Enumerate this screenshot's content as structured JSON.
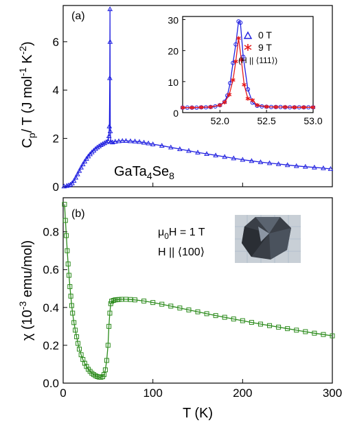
{
  "colors": {
    "cp": "#1f1fe0",
    "cp_inset_0T": "#1f1fe0",
    "cp_inset_9T": "#e41a1c",
    "chi": "#2a8a1a"
  },
  "chart_data": [
    {
      "panel": "(a)",
      "type": "scatter",
      "xlabel": "",
      "ylabel": "C_p / T (J mol^-1 K^-2)",
      "ylabel_parts": {
        "C": "C",
        "p": "p",
        "rest": "/ T (J mol",
        "e1": "-1",
        "K": " K",
        "e2": "-2",
        "close": ")"
      },
      "xlim": [
        0,
        300
      ],
      "ylim": [
        0,
        7.5
      ],
      "yticks": [
        "0",
        "2",
        "4",
        "6"
      ],
      "annotation": {
        "parts": [
          "GaTa",
          "4",
          "Se",
          "8"
        ]
      },
      "series": [
        {
          "marker": "triangle",
          "x": [
            1,
            4,
            6,
            8,
            10,
            12,
            14,
            16,
            18,
            20,
            22,
            24,
            26,
            28,
            30,
            32,
            34,
            36,
            38,
            40,
            42,
            44,
            46,
            48,
            50,
            51,
            51.5,
            52,
            52.2,
            52.3,
            52.5,
            53,
            55,
            58,
            62,
            66,
            70,
            75,
            80,
            85,
            90,
            95,
            100,
            110,
            120,
            130,
            140,
            150,
            160,
            170,
            180,
            190,
            200,
            210,
            220,
            230,
            240,
            250,
            260,
            270,
            280,
            290,
            298
          ],
          "y": [
            0.02,
            0.04,
            0.06,
            0.09,
            0.15,
            0.25,
            0.38,
            0.52,
            0.66,
            0.8,
            0.93,
            1.05,
            1.16,
            1.26,
            1.35,
            1.43,
            1.5,
            1.57,
            1.63,
            1.68,
            1.73,
            1.77,
            1.81,
            1.85,
            1.9,
            2.1,
            2.5,
            4.5,
            7.35,
            6.0,
            2.3,
            1.86,
            1.84,
            1.87,
            1.89,
            1.9,
            1.9,
            1.89,
            1.88,
            1.86,
            1.83,
            1.8,
            1.76,
            1.7,
            1.63,
            1.56,
            1.49,
            1.42,
            1.36,
            1.3,
            1.24,
            1.18,
            1.12,
            1.07,
            1.02,
            0.98,
            0.94,
            0.9,
            0.86,
            0.83,
            0.8,
            0.77,
            0.74
          ]
        }
      ],
      "inset": {
        "type": "line",
        "xlim": [
          51.6,
          53.0
        ],
        "ylim": [
          0,
          31
        ],
        "xticks": [
          "52.0",
          "52.5",
          "53.0"
        ],
        "yticks": [
          "0",
          "10",
          "20",
          "30"
        ],
        "legend": [
          "0 T",
          "9 T",
          "(H || ⟨111⟩)"
        ],
        "series": [
          {
            "name": "0 T",
            "marker": "triangle",
            "x": [
              51.6,
              51.65,
              51.7,
              51.75,
              51.8,
              51.85,
              51.9,
              51.95,
              52.0,
              52.05,
              52.08,
              52.11,
              52.14,
              52.17,
              52.2,
              52.22,
              52.25,
              52.3,
              52.35,
              52.4,
              52.45,
              52.5,
              52.55,
              52.6,
              52.65,
              52.7,
              52.75,
              52.8,
              52.85,
              52.9,
              52.95,
              53.0
            ],
            "y": [
              1.6,
              1.6,
              1.6,
              1.6,
              1.7,
              1.7,
              1.8,
              2.0,
              2.4,
              3.5,
              5.5,
              9.5,
              16.0,
              22.0,
              29.4,
              29.0,
              18.0,
              7.5,
              3.2,
              2.2,
              2.0,
              1.9,
              1.8,
              1.8,
              1.8,
              1.7,
              1.7,
              1.7,
              1.7,
              1.7,
              1.7,
              1.7
            ]
          },
          {
            "name": "9 T",
            "marker": "star",
            "x": [
              51.6,
              51.7,
              51.8,
              51.9,
              52.0,
              52.05,
              52.1,
              52.14,
              52.17,
              52.2,
              52.23,
              52.26,
              52.3,
              52.35,
              52.4,
              52.5,
              52.6,
              52.7,
              52.8,
              52.9,
              53.0
            ],
            "y": [
              1.6,
              1.6,
              1.7,
              1.8,
              2.4,
              3.3,
              5.8,
              10.5,
              16.5,
              24.0,
              17.0,
              9.0,
              4.5,
              4.0,
              2.4,
              1.9,
              1.8,
              1.8,
              1.7,
              1.7,
              1.7
            ]
          }
        ]
      }
    },
    {
      "panel": "(b)",
      "type": "scatter",
      "xlabel": "T (K)",
      "ylabel": "χ (10^-3 emu/mol)",
      "ylabel_parts": {
        "chi": "χ",
        "open": " (10",
        "exp": "-3",
        "rest": " emu/mol)"
      },
      "xlim": [
        0,
        300
      ],
      "ylim": [
        0,
        0.98
      ],
      "xticks": [
        "0",
        "100",
        "200",
        "300"
      ],
      "yticks": [
        "0.0",
        "0.2",
        "0.4",
        "0.6",
        "0.8"
      ],
      "annotation": {
        "line1_mu": "μ",
        "line1_sub": "0",
        "line1_rest": "H = 1 T",
        "line2": "H || ⟨100⟩"
      },
      "series": [
        {
          "marker": "square",
          "x": [
            1.5,
            2.5,
            3.5,
            4.5,
            5.5,
            6.5,
            7.5,
            8.5,
            9.5,
            10.5,
            12,
            13.5,
            15,
            16.5,
            18,
            20,
            22,
            24,
            26,
            28,
            30,
            32,
            34,
            36,
            38,
            40,
            42,
            44,
            45.5,
            47,
            48.5,
            50,
            51,
            52,
            53,
            54,
            56,
            58,
            60,
            62,
            65,
            70,
            75,
            80,
            90,
            100,
            110,
            120,
            130,
            140,
            150,
            160,
            170,
            180,
            190,
            200,
            210,
            220,
            230,
            240,
            250,
            260,
            270,
            280,
            290,
            300
          ],
          "y": [
            0.945,
            0.86,
            0.78,
            0.7,
            0.63,
            0.57,
            0.51,
            0.46,
            0.41,
            0.37,
            0.32,
            0.28,
            0.245,
            0.21,
            0.18,
            0.15,
            0.125,
            0.105,
            0.088,
            0.073,
            0.062,
            0.052,
            0.045,
            0.039,
            0.035,
            0.032,
            0.031,
            0.034,
            0.045,
            0.07,
            0.12,
            0.2,
            0.3,
            0.37,
            0.42,
            0.433,
            0.437,
            0.44,
            0.441,
            0.442,
            0.443,
            0.443,
            0.442,
            0.44,
            0.434,
            0.426,
            0.417,
            0.407,
            0.397,
            0.387,
            0.377,
            0.367,
            0.357,
            0.348,
            0.339,
            0.33,
            0.321,
            0.312,
            0.304,
            0.296,
            0.288,
            0.28,
            0.272,
            0.264,
            0.257,
            0.25
          ]
        }
      ]
    }
  ]
}
